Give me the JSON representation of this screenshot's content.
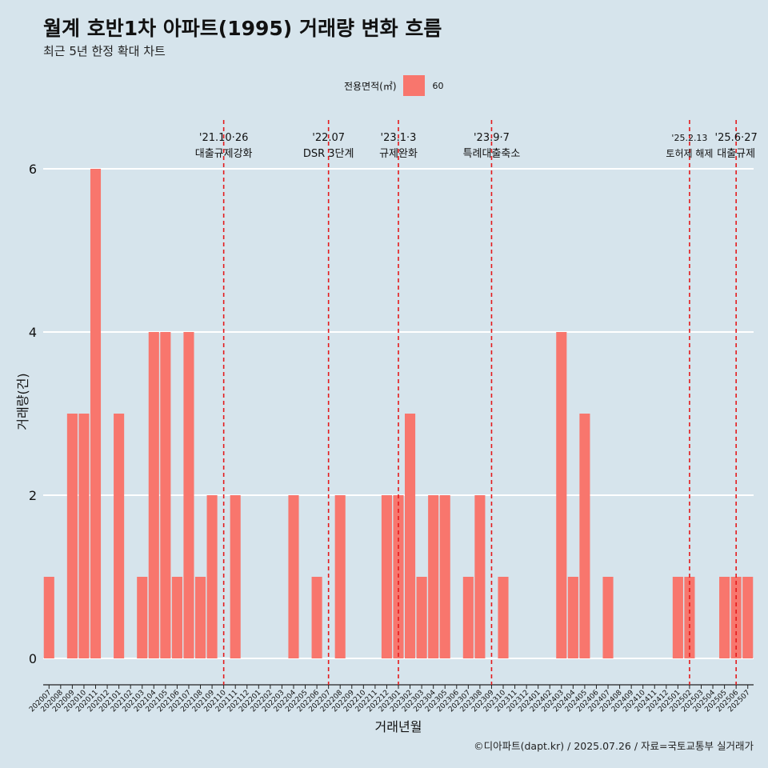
{
  "chart_data": {
    "type": "bar",
    "title": "월계 호반1차 아파트(1995) 거래량 변화 흐름",
    "subtitle": "최근 5년 한정 확대 차트",
    "xlabel": "거래년월",
    "ylabel": "거래량(건)",
    "caption": "©디아파트(dapt.kr) / 2025.07.26 / 자료=국토교통부 실거래가",
    "legend": {
      "title": "전용면적(㎡)",
      "position": "top",
      "entries": [
        {
          "label": "60",
          "color": "#f8766d"
        }
      ]
    },
    "ylim": [
      0,
      6
    ],
    "yticks": [
      0,
      2,
      4,
      6
    ],
    "grid": true,
    "bar_color": "#f8766d",
    "categories": [
      "202007",
      "202008",
      "202009",
      "202010",
      "202011",
      "202012",
      "202101",
      "202102",
      "202103",
      "202104",
      "202105",
      "202106",
      "202107",
      "202108",
      "202109",
      "202110",
      "202111",
      "202112",
      "202201",
      "202202",
      "202203",
      "202204",
      "202205",
      "202206",
      "202207",
      "202208",
      "202209",
      "202210",
      "202211",
      "202212",
      "202301",
      "202302",
      "202303",
      "202304",
      "202305",
      "202306",
      "202307",
      "202308",
      "202309",
      "202310",
      "202311",
      "202312",
      "202401",
      "202402",
      "202403",
      "202404",
      "202405",
      "202406",
      "202407",
      "202408",
      "202409",
      "202410",
      "202411",
      "202412",
      "202501",
      "202502",
      "202503",
      "202504",
      "202505",
      "202506",
      "202507"
    ],
    "series": [
      {
        "name": "60",
        "values": [
          1,
          0,
          3,
          3,
          6,
          0,
          3,
          0,
          1,
          4,
          4,
          1,
          4,
          1,
          2,
          0,
          2,
          0,
          0,
          0,
          0,
          2,
          0,
          1,
          0,
          2,
          0,
          0,
          0,
          2,
          2,
          3,
          1,
          2,
          2,
          0,
          1,
          2,
          0,
          1,
          0,
          0,
          0,
          0,
          4,
          1,
          3,
          0,
          1,
          0,
          0,
          0,
          0,
          0,
          1,
          1,
          0,
          0,
          1,
          1,
          1
        ]
      }
    ],
    "annotations": [
      {
        "x": "202110",
        "date": "'21.10·26",
        "label": "대출규제강화"
      },
      {
        "x": "202207",
        "date": "'22.07",
        "label": "DSR 3단계"
      },
      {
        "x": "202301",
        "date": "'23.1·3",
        "label": "규제완화"
      },
      {
        "x": "202309",
        "date": "'23.9·7",
        "label": "특례대출축소"
      },
      {
        "x": "202502",
        "date": "'25.2.13",
        "label": "토허제 해제"
      },
      {
        "x": "202506",
        "date": "'25.6·27",
        "label": "대출규제"
      }
    ]
  }
}
